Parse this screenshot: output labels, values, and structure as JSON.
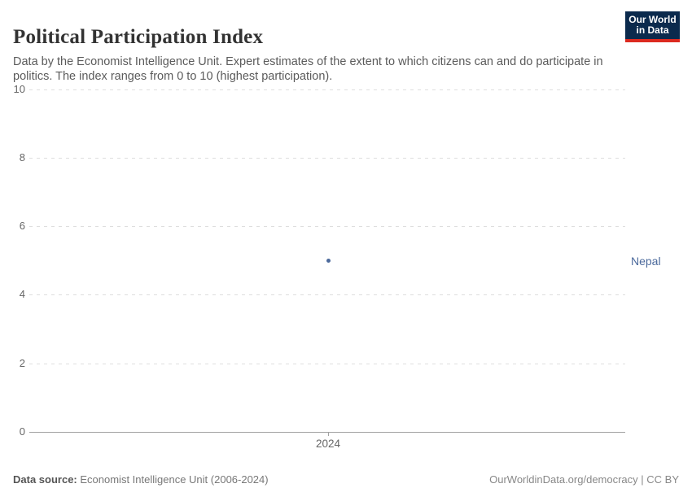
{
  "header": {
    "title": "Political Participation Index",
    "subtitle": "Data by the Economist Intelligence Unit. Expert estimates of the extent to which citizens can and do participate in politics. The index ranges from 0 to 10 (highest participation).",
    "logo": {
      "line1": "Our World",
      "line2": "in Data",
      "bg_color": "#0b2a4d",
      "bar_color": "#dc2a20"
    }
  },
  "chart_data": {
    "type": "scatter",
    "title": "Political Participation Index",
    "x": [
      2024
    ],
    "series": [
      {
        "name": "Nepal",
        "values": [
          5
        ],
        "color": "#4c6a9c"
      }
    ],
    "xlabel": "",
    "ylabel": "",
    "ylim": [
      0,
      10
    ],
    "x_tick_labels": [
      "2024"
    ],
    "y_tick_labels": [
      "10",
      "8",
      "6",
      "4",
      "2",
      "0"
    ],
    "grid": "horizontal dashed",
    "legend_position": "right of point"
  },
  "footer": {
    "source_label": "Data source:",
    "source_text": " Economist Intelligence Unit (2006-2024)",
    "license_text": "OurWorldinData.org/democracy | CC BY"
  },
  "colors": {
    "accent_series": "#4c6a9c",
    "gridline": "#dedede",
    "axis_line": "#a1a1a1",
    "tick_text": "#666666",
    "subtitle_text": "#5b5b5b"
  }
}
